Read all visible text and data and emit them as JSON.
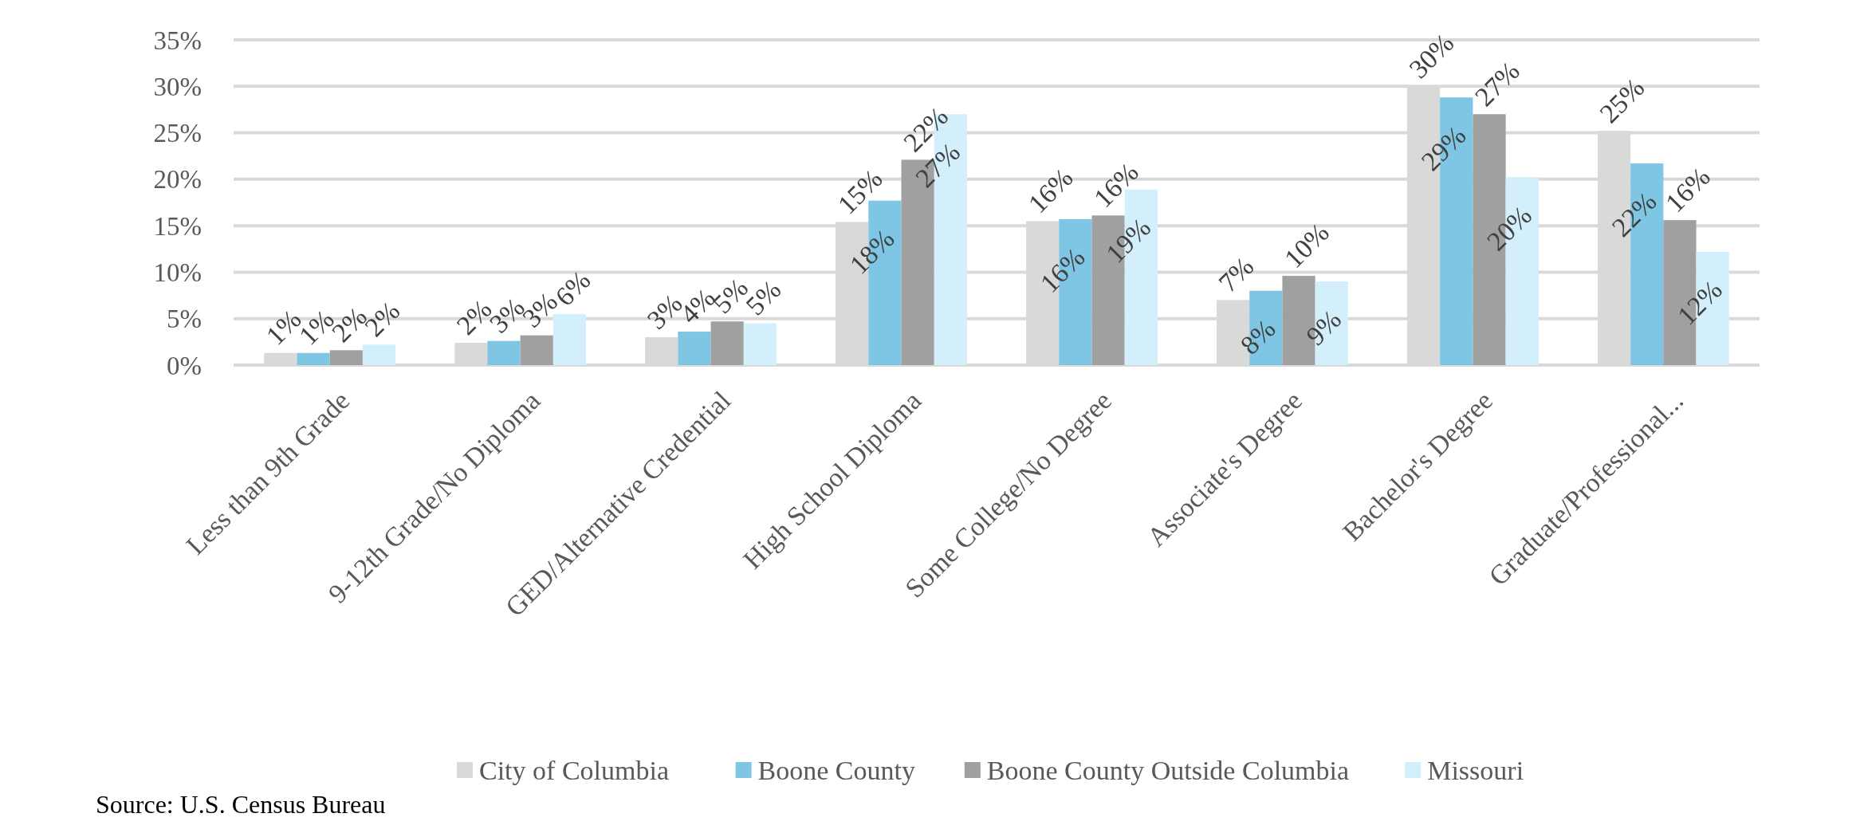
{
  "chart_data": {
    "type": "bar",
    "categories": [
      "Less than 9th Grade",
      "9-12th Grade/No Diploma",
      "GED/Alternative Credential",
      "High School Diploma",
      "Some College/No Degree",
      "Associate's Degree",
      "Bachelor's Degree",
      "Graduate/Professional..."
    ],
    "series": [
      {
        "name": "City of Columbia",
        "color": "#d9d9d9",
        "values": [
          1.3,
          2.4,
          3.0,
          15.4,
          15.5,
          7.0,
          30.0,
          25.2
        ],
        "value_labels": [
          "1%",
          "2%",
          "3%",
          "15%",
          "16%",
          "7%",
          "30%",
          "25%"
        ]
      },
      {
        "name": "Boone County",
        "color": "#7ec6e3",
        "values": [
          1.3,
          2.6,
          3.6,
          17.7,
          15.7,
          8.0,
          28.8,
          21.7
        ],
        "value_labels": [
          "1%",
          "3%",
          "4%",
          "18%",
          "16%",
          "8%",
          "29%",
          "22%"
        ]
      },
      {
        "name": "Boone County Outside Columbia",
        "color": "#a0a0a0",
        "values": [
          1.6,
          3.2,
          4.7,
          22.1,
          16.1,
          9.6,
          27.0,
          15.6
        ],
        "value_labels": [
          "2%",
          "3%",
          "5%",
          "22%",
          "16%",
          "10%",
          "27%",
          "16%"
        ]
      },
      {
        "name": "Missouri",
        "color": "#d3effc",
        "values": [
          2.2,
          5.5,
          4.5,
          27.0,
          18.9,
          9.0,
          20.2,
          12.2
        ],
        "value_labels": [
          "2%",
          "6%",
          "5%",
          "27%",
          "19%",
          "9%",
          "20%",
          "12%"
        ]
      }
    ],
    "ylim": [
      0,
      35
    ],
    "yticks": [
      {
        "value": 0,
        "label": "0%"
      },
      {
        "value": 5,
        "label": "5%"
      },
      {
        "value": 10,
        "label": "10%"
      },
      {
        "value": 15,
        "label": "15%"
      },
      {
        "value": 20,
        "label": "20%"
      },
      {
        "value": 25,
        "label": "25%"
      },
      {
        "value": 30,
        "label": "30%"
      },
      {
        "value": 35,
        "label": "35%"
      }
    ],
    "grid": "y",
    "legend": "bottom",
    "annotations": [
      "Source: U.S. Census Bureau"
    ]
  }
}
